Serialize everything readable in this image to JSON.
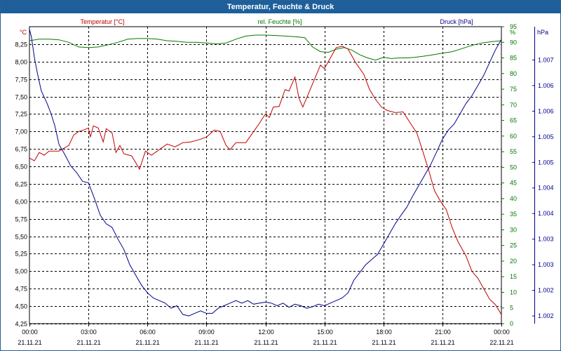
{
  "window": {
    "title": "Temperatur, Feuchte & Druck"
  },
  "chart_data": {
    "type": "line",
    "title": "Temperatur, Feuchte & Druck",
    "x_ticks": [
      {
        "time": "00:00",
        "date": "21.11.21"
      },
      {
        "time": "03:00",
        "date": "21.11.21"
      },
      {
        "time": "06:00",
        "date": "21.11.21"
      },
      {
        "time": "09:00",
        "date": "21.11.21"
      },
      {
        "time": "12:00",
        "date": "21.11.21"
      },
      {
        "time": "15:00",
        "date": "21.11.21"
      },
      {
        "time": "18:00",
        "date": "21.11.21"
      },
      {
        "time": "21:00",
        "date": "21.11.21"
      },
      {
        "time": "00:00",
        "date": "22.11.21"
      }
    ],
    "x_range_hours": [
      0,
      24
    ],
    "grid": true,
    "axes": {
      "temperature": {
        "unit_label": "°C",
        "range": [
          4.25,
          8.5
        ],
        "tick_labels": [
          "4,25",
          "4,50",
          "4,75",
          "5,00",
          "5,25",
          "5,50",
          "5,75",
          "6,00",
          "6,25",
          "6,50",
          "6,75",
          "7,00",
          "7,25",
          "7,50",
          "7,75",
          "8,00",
          "8,25"
        ],
        "tick_values": [
          4.25,
          4.5,
          4.75,
          5.0,
          5.25,
          5.5,
          5.75,
          6.0,
          6.25,
          6.5,
          6.75,
          7.0,
          7.25,
          7.5,
          7.75,
          8.0,
          8.25
        ]
      },
      "humidity": {
        "unit_label": "%",
        "range": [
          0,
          95
        ],
        "tick_labels": [
          "0",
          "5",
          "10",
          "15",
          "20",
          "25",
          "30",
          "35",
          "40",
          "45",
          "50",
          "55",
          "60",
          "65",
          "70",
          "75",
          "80",
          "85",
          "90",
          "95"
        ],
        "tick_values": [
          0,
          5,
          10,
          15,
          20,
          25,
          30,
          35,
          40,
          45,
          50,
          55,
          60,
          65,
          70,
          75,
          80,
          85,
          90,
          95
        ]
      },
      "pressure": {
        "unit_label": "hPa",
        "range": [
          1001.6,
          1007.4
        ],
        "tick_labels": [
          "1.002",
          "1.002",
          "1.003",
          "1.003",
          "1.004",
          "1.004",
          "1.005",
          "1.005",
          "1.006",
          "1.006",
          "1.007"
        ],
        "tick_values": [
          1001.75,
          1002.25,
          1002.75,
          1003.25,
          1003.75,
          1004.25,
          1004.75,
          1005.25,
          1005.75,
          1006.25,
          1006.75
        ]
      }
    },
    "series": [
      {
        "name": "Temperatur [°C]",
        "axis": "temperature",
        "color": "#c00000",
        "points": [
          [
            0,
            6.62
          ],
          [
            0.25,
            6.58
          ],
          [
            0.5,
            6.7
          ],
          [
            0.75,
            6.66
          ],
          [
            1.0,
            6.72
          ],
          [
            1.5,
            6.72
          ],
          [
            2.0,
            6.8
          ],
          [
            2.25,
            6.95
          ],
          [
            2.5,
            7.0
          ],
          [
            2.75,
            7.02
          ],
          [
            3.0,
            7.05
          ],
          [
            3.1,
            6.92
          ],
          [
            3.25,
            7.08
          ],
          [
            3.5,
            7.05
          ],
          [
            3.75,
            6.85
          ],
          [
            3.9,
            7.04
          ],
          [
            4.2,
            6.98
          ],
          [
            4.4,
            6.7
          ],
          [
            4.6,
            6.8
          ],
          [
            4.8,
            6.68
          ],
          [
            5.2,
            6.65
          ],
          [
            5.6,
            6.46
          ],
          [
            5.9,
            6.72
          ],
          [
            6.2,
            6.66
          ],
          [
            6.6,
            6.74
          ],
          [
            7.0,
            6.82
          ],
          [
            7.4,
            6.78
          ],
          [
            7.8,
            6.84
          ],
          [
            8.2,
            6.85
          ],
          [
            8.6,
            6.88
          ],
          [
            9.0,
            6.92
          ],
          [
            9.4,
            7.02
          ],
          [
            9.7,
            7.0
          ],
          [
            10.0,
            6.8
          ],
          [
            10.2,
            6.74
          ],
          [
            10.5,
            6.84
          ],
          [
            11.0,
            6.84
          ],
          [
            11.4,
            7.0
          ],
          [
            11.7,
            7.12
          ],
          [
            12.0,
            7.25
          ],
          [
            12.2,
            7.2
          ],
          [
            12.4,
            7.35
          ],
          [
            12.7,
            7.36
          ],
          [
            13.0,
            7.6
          ],
          [
            13.2,
            7.58
          ],
          [
            13.5,
            7.78
          ],
          [
            13.7,
            7.48
          ],
          [
            13.9,
            7.35
          ],
          [
            14.2,
            7.55
          ],
          [
            14.5,
            7.75
          ],
          [
            14.8,
            7.95
          ],
          [
            15.0,
            7.9
          ],
          [
            15.3,
            8.05
          ],
          [
            15.6,
            8.2
          ],
          [
            15.9,
            8.22
          ],
          [
            16.2,
            8.18
          ],
          [
            16.6,
            7.98
          ],
          [
            17.0,
            7.82
          ],
          [
            17.3,
            7.6
          ],
          [
            17.6,
            7.46
          ],
          [
            17.9,
            7.35
          ],
          [
            18.2,
            7.3
          ],
          [
            18.6,
            7.27
          ],
          [
            19.0,
            7.28
          ],
          [
            19.3,
            7.15
          ],
          [
            19.7,
            6.98
          ],
          [
            20.0,
            6.72
          ],
          [
            20.3,
            6.45
          ],
          [
            20.6,
            6.15
          ],
          [
            20.9,
            6.0
          ],
          [
            21.2,
            5.88
          ],
          [
            21.5,
            5.62
          ],
          [
            21.8,
            5.42
          ],
          [
            22.2,
            5.22
          ],
          [
            22.5,
            5.0
          ],
          [
            22.8,
            4.9
          ],
          [
            23.1,
            4.75
          ],
          [
            23.4,
            4.6
          ],
          [
            23.7,
            4.52
          ],
          [
            24.0,
            4.38
          ]
        ]
      },
      {
        "name": "rel. Feuchte [%]",
        "axis": "humidity",
        "color": "#007a00",
        "points": [
          [
            0,
            90.5
          ],
          [
            0.5,
            91
          ],
          [
            1.0,
            91
          ],
          [
            1.5,
            90.8
          ],
          [
            2.0,
            90
          ],
          [
            2.5,
            88.5
          ],
          [
            3.0,
            88.3
          ],
          [
            3.5,
            88.5
          ],
          [
            4.0,
            89.2
          ],
          [
            4.5,
            90
          ],
          [
            5.0,
            91
          ],
          [
            5.5,
            91.2
          ],
          [
            6.0,
            91.2
          ],
          [
            6.5,
            91
          ],
          [
            7.0,
            90.5
          ],
          [
            7.5,
            90.3
          ],
          [
            8.0,
            90
          ],
          [
            8.5,
            90
          ],
          [
            9.0,
            89.8
          ],
          [
            9.5,
            89.5
          ],
          [
            10.0,
            89.8
          ],
          [
            10.5,
            91
          ],
          [
            11.0,
            92
          ],
          [
            11.5,
            92.3
          ],
          [
            12.0,
            92.3
          ],
          [
            12.5,
            92.2
          ],
          [
            13.0,
            92
          ],
          [
            13.5,
            91.8
          ],
          [
            14.0,
            91.5
          ],
          [
            14.4,
            88.5
          ],
          [
            14.8,
            87
          ],
          [
            15.2,
            86.8
          ],
          [
            15.6,
            87.8
          ],
          [
            16.0,
            88.3
          ],
          [
            16.4,
            87.5
          ],
          [
            16.8,
            86
          ],
          [
            17.2,
            85
          ],
          [
            17.6,
            84.3
          ],
          [
            18.0,
            85.2
          ],
          [
            18.4,
            84.8
          ],
          [
            18.8,
            85
          ],
          [
            19.2,
            85
          ],
          [
            19.6,
            85.2
          ],
          [
            20.0,
            85.5
          ],
          [
            20.5,
            86
          ],
          [
            21.0,
            86.5
          ],
          [
            21.5,
            87
          ],
          [
            22.0,
            88
          ],
          [
            22.5,
            89
          ],
          [
            23.0,
            89.8
          ],
          [
            23.5,
            90.2
          ],
          [
            24.0,
            90.5
          ]
        ]
      },
      {
        "name": "Druck [hPa]",
        "axis": "pressure",
        "color": "#00008b",
        "points": [
          [
            0,
            1007.35
          ],
          [
            0.1,
            1007.2
          ],
          [
            0.25,
            1006.8
          ],
          [
            0.4,
            1006.5
          ],
          [
            0.6,
            1006.15
          ],
          [
            0.9,
            1005.9
          ],
          [
            1.1,
            1005.7
          ],
          [
            1.3,
            1005.45
          ],
          [
            1.5,
            1005.1
          ],
          [
            1.8,
            1004.9
          ],
          [
            2.1,
            1004.68
          ],
          [
            2.4,
            1004.55
          ],
          [
            2.7,
            1004.38
          ],
          [
            3.0,
            1004.35
          ],
          [
            3.3,
            1004.05
          ],
          [
            3.6,
            1003.72
          ],
          [
            3.9,
            1003.55
          ],
          [
            4.2,
            1003.48
          ],
          [
            4.5,
            1003.25
          ],
          [
            4.8,
            1003.05
          ],
          [
            5.1,
            1002.75
          ],
          [
            5.4,
            1002.55
          ],
          [
            5.7,
            1002.35
          ],
          [
            6.0,
            1002.2
          ],
          [
            6.3,
            1002.1
          ],
          [
            6.6,
            1002.05
          ],
          [
            6.9,
            1002.0
          ],
          [
            7.2,
            1001.9
          ],
          [
            7.5,
            1001.95
          ],
          [
            7.8,
            1001.78
          ],
          [
            8.1,
            1001.75
          ],
          [
            8.4,
            1001.8
          ],
          [
            8.7,
            1001.85
          ],
          [
            9.0,
            1001.8
          ],
          [
            9.3,
            1001.8
          ],
          [
            9.6,
            1001.9
          ],
          [
            9.9,
            1001.95
          ],
          [
            10.2,
            1002.0
          ],
          [
            10.5,
            1002.05
          ],
          [
            10.8,
            1002.0
          ],
          [
            11.1,
            1002.05
          ],
          [
            11.4,
            1001.98
          ],
          [
            11.7,
            1002.0
          ],
          [
            12.0,
            1002.02
          ],
          [
            12.3,
            1002.0
          ],
          [
            12.6,
            1001.95
          ],
          [
            12.9,
            1002.0
          ],
          [
            13.2,
            1001.92
          ],
          [
            13.5,
            1001.98
          ],
          [
            13.8,
            1001.95
          ],
          [
            14.1,
            1001.9
          ],
          [
            14.4,
            1001.93
          ],
          [
            14.7,
            1001.98
          ],
          [
            15.0,
            1001.95
          ],
          [
            15.3,
            1002.0
          ],
          [
            15.6,
            1002.05
          ],
          [
            15.9,
            1002.1
          ],
          [
            16.2,
            1002.2
          ],
          [
            16.5,
            1002.45
          ],
          [
            16.8,
            1002.6
          ],
          [
            17.1,
            1002.75
          ],
          [
            17.4,
            1002.85
          ],
          [
            17.7,
            1002.95
          ],
          [
            18.0,
            1003.15
          ],
          [
            18.3,
            1003.35
          ],
          [
            18.6,
            1003.55
          ],
          [
            18.9,
            1003.72
          ],
          [
            19.2,
            1003.88
          ],
          [
            19.5,
            1004.1
          ],
          [
            19.8,
            1004.3
          ],
          [
            20.1,
            1004.5
          ],
          [
            20.4,
            1004.7
          ],
          [
            20.7,
            1004.95
          ],
          [
            21.0,
            1005.2
          ],
          [
            21.3,
            1005.38
          ],
          [
            21.6,
            1005.5
          ],
          [
            21.9,
            1005.7
          ],
          [
            22.2,
            1005.9
          ],
          [
            22.5,
            1006.05
          ],
          [
            22.8,
            1006.25
          ],
          [
            23.1,
            1006.45
          ],
          [
            23.4,
            1006.7
          ],
          [
            23.7,
            1006.95
          ],
          [
            24.0,
            1007.15
          ]
        ]
      }
    ]
  }
}
